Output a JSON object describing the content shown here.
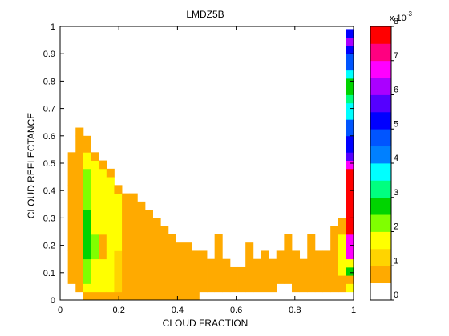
{
  "chart_data": {
    "type": "heatmap",
    "title": "LMDZ5B",
    "xlabel": "CLOUD FRACTION",
    "ylabel": "CLOUD REFLECTANCE",
    "xlim": [
      0,
      1
    ],
    "ylim": [
      0,
      1
    ],
    "xticks": [
      "0",
      "0.2",
      "0.4",
      "0.6",
      "0.8",
      "1"
    ],
    "yticks": [
      "0",
      "0.1",
      "0.2",
      "0.3",
      "0.4",
      "0.5",
      "0.6",
      "0.7",
      "0.8",
      "0.9",
      "1"
    ],
    "x_step": 0.02632,
    "y_step": 0.03,
    "colorbar": {
      "exponent_label": "x 10",
      "exponent_power": "-3",
      "ticks": [
        "0",
        "1",
        "2",
        "3",
        "4",
        "5",
        "6",
        "7",
        "8"
      ],
      "levels": [
        {
          "from": 0.0,
          "to": 0.5,
          "color": "#ffffff"
        },
        {
          "from": 0.5,
          "to": 1.0,
          "color": "#ffaa00"
        },
        {
          "from": 1.0,
          "to": 1.5,
          "color": "#ffd400"
        },
        {
          "from": 1.5,
          "to": 2.0,
          "color": "#ffff00"
        },
        {
          "from": 2.0,
          "to": 2.5,
          "color": "#80ff00"
        },
        {
          "from": 2.5,
          "to": 3.0,
          "color": "#00d400"
        },
        {
          "from": 3.0,
          "to": 3.5,
          "color": "#00ff80"
        },
        {
          "from": 3.5,
          "to": 4.0,
          "color": "#00ffff"
        },
        {
          "from": 4.0,
          "to": 4.5,
          "color": "#0080ff"
        },
        {
          "from": 4.5,
          "to": 5.0,
          "color": "#0055ff"
        },
        {
          "from": 5.0,
          "to": 5.5,
          "color": "#0000ff"
        },
        {
          "from": 5.5,
          "to": 6.0,
          "color": "#5500ff"
        },
        {
          "from": 6.0,
          "to": 6.5,
          "color": "#aa00ff"
        },
        {
          "from": 6.5,
          "to": 7.0,
          "color": "#ff00ff"
        },
        {
          "from": 7.0,
          "to": 7.5,
          "color": "#ff0080"
        },
        {
          "from": 7.5,
          "to": 8.0,
          "color": "#ff0000"
        }
      ]
    },
    "cells_by_column": [
      [],
      [
        [
          2,
          6,
          0.7
        ],
        [
          6,
          14,
          0.8
        ],
        [
          14,
          18,
          0.7
        ]
      ],
      [
        [
          1,
          3,
          0.7
        ],
        [
          3,
          9,
          0.8
        ],
        [
          9,
          14,
          0.8
        ],
        [
          14,
          20,
          0.9
        ],
        [
          20,
          21,
          0.8
        ]
      ],
      [
        [
          0,
          1,
          0.8
        ],
        [
          1,
          2,
          1.8
        ],
        [
          2,
          5,
          2.2
        ],
        [
          5,
          11,
          2.6
        ],
        [
          11,
          16,
          2.2
        ],
        [
          16,
          18,
          1.8
        ],
        [
          18,
          19,
          0.9
        ],
        [
          19,
          20,
          0.8
        ]
      ],
      [
        [
          0,
          1,
          0.8
        ],
        [
          1,
          3,
          1.6
        ],
        [
          3,
          5,
          1.8
        ],
        [
          5,
          8,
          2.2
        ],
        [
          8,
          11,
          1.8
        ],
        [
          11,
          16,
          1.8
        ],
        [
          16,
          17,
          1.6
        ],
        [
          17,
          18,
          0.8
        ]
      ],
      [
        [
          0,
          1,
          0.8
        ],
        [
          1,
          5,
          1.8
        ],
        [
          5,
          8,
          0.8
        ],
        [
          8,
          13,
          1.6
        ],
        [
          13,
          16,
          1.6
        ],
        [
          16,
          17,
          0.8
        ]
      ],
      [
        [
          0,
          1,
          0.8
        ],
        [
          1,
          6,
          1.6
        ],
        [
          6,
          11,
          1.8
        ],
        [
          11,
          15,
          1.6
        ],
        [
          15,
          16,
          0.8
        ]
      ],
      [
        [
          0,
          1,
          0.8
        ],
        [
          1,
          6,
          1.2
        ],
        [
          6,
          13,
          1.6
        ],
        [
          13,
          14,
          0.8
        ]
      ],
      [
        [
          0,
          1,
          0.8
        ],
        [
          1,
          13,
          0.8
        ]
      ],
      [
        [
          0,
          13,
          0.8
        ]
      ],
      [
        [
          0,
          12,
          0.8
        ]
      ],
      [
        [
          0,
          11,
          0.8
        ]
      ],
      [
        [
          0,
          10,
          0.8
        ]
      ],
      [
        [
          0,
          9,
          0.8
        ]
      ],
      [
        [
          0,
          8,
          0.8
        ]
      ],
      [
        [
          0,
          7,
          0.8
        ]
      ],
      [
        [
          0,
          7,
          0.8
        ]
      ],
      [
        [
          0,
          6,
          0.8
        ]
      ],
      [
        [
          1,
          6,
          0.8
        ]
      ],
      [
        [
          1,
          5,
          0.8
        ]
      ],
      [
        [
          1,
          8,
          0.8
        ]
      ],
      [
        [
          1,
          5,
          0.8
        ]
      ],
      [
        [
          1,
          4,
          0.8
        ]
      ],
      [
        [
          1,
          4,
          0.8
        ]
      ],
      [
        [
          1,
          7,
          0.8
        ]
      ],
      [
        [
          1,
          5,
          0.8
        ]
      ],
      [
        [
          1,
          6,
          0.8
        ]
      ],
      [
        [
          1,
          5,
          0.8
        ]
      ],
      [
        [
          2,
          6,
          0.8
        ]
      ],
      [
        [
          2,
          8,
          0.8
        ]
      ],
      [
        [
          1,
          6,
          0.8
        ]
      ],
      [
        [
          1,
          5,
          0.8
        ]
      ],
      [
        [
          1,
          8,
          0.8
        ]
      ],
      [
        [
          1,
          6,
          0.8
        ]
      ],
      [
        [
          1,
          6,
          0.8
        ]
      ],
      [
        [
          1,
          9,
          0.8
        ]
      ],
      [
        [
          1,
          3,
          0.8
        ],
        [
          3,
          8,
          1.6
        ],
        [
          8,
          10,
          0.8
        ]
      ],
      [
        [
          1,
          2,
          1.6
        ],
        [
          2,
          3,
          0.8
        ],
        [
          3,
          4,
          2.6
        ],
        [
          4,
          5,
          1.8
        ],
        [
          5,
          8,
          6.8
        ],
        [
          8,
          16,
          7.8
        ],
        [
          16,
          17,
          6.8
        ],
        [
          17,
          18,
          5.8
        ],
        [
          18,
          20,
          5.2
        ],
        [
          20,
          22,
          4.8
        ],
        [
          22,
          24,
          3.8
        ],
        [
          24,
          25,
          3.2
        ],
        [
          25,
          27,
          2.8
        ],
        [
          27,
          28,
          3.8
        ],
        [
          28,
          30,
          4.8
        ],
        [
          30,
          31,
          5.2
        ],
        [
          31,
          32,
          6.2
        ],
        [
          32,
          33,
          5.2
        ]
      ]
    ]
  }
}
